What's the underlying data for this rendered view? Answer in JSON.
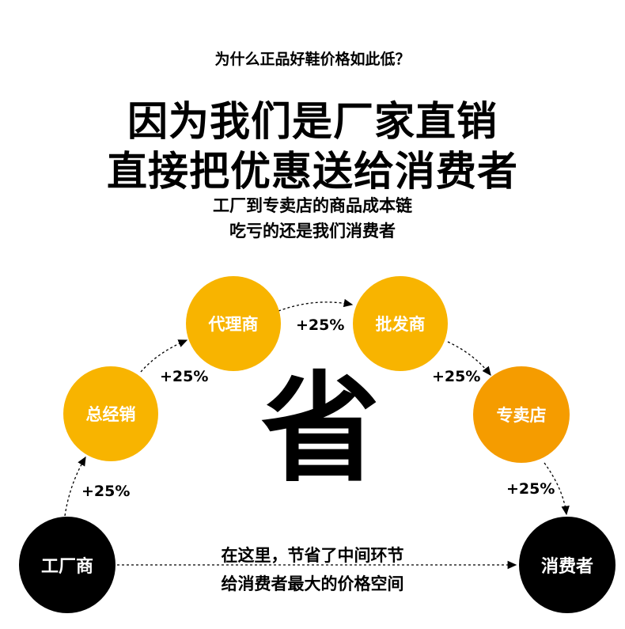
{
  "question": "为什么正品好鞋价格如此低？",
  "headline_line1": "因为我们是厂家直销",
  "headline_line2": "直接把优惠送给消费者",
  "sub_line1": "工厂到专卖店的商品成本链",
  "sub_line2": "吃亏的还是我们消费者",
  "nodes": {
    "factory": "工厂商",
    "general_distributor": "总经销",
    "agent": "代理商",
    "wholesaler": "批发商",
    "store": "专卖店",
    "consumer": "消费者"
  },
  "markups": [
    "+25%",
    "+25%",
    "+25%",
    "+25%",
    "+25%"
  ],
  "center_char": "省",
  "bottom_line1": "在这里，节省了中间环节",
  "bottom_line2": "给消费者最大的价格空间",
  "colors": {
    "yellow": "#f8b400",
    "orange": "#f59c00",
    "black": "#000000"
  }
}
